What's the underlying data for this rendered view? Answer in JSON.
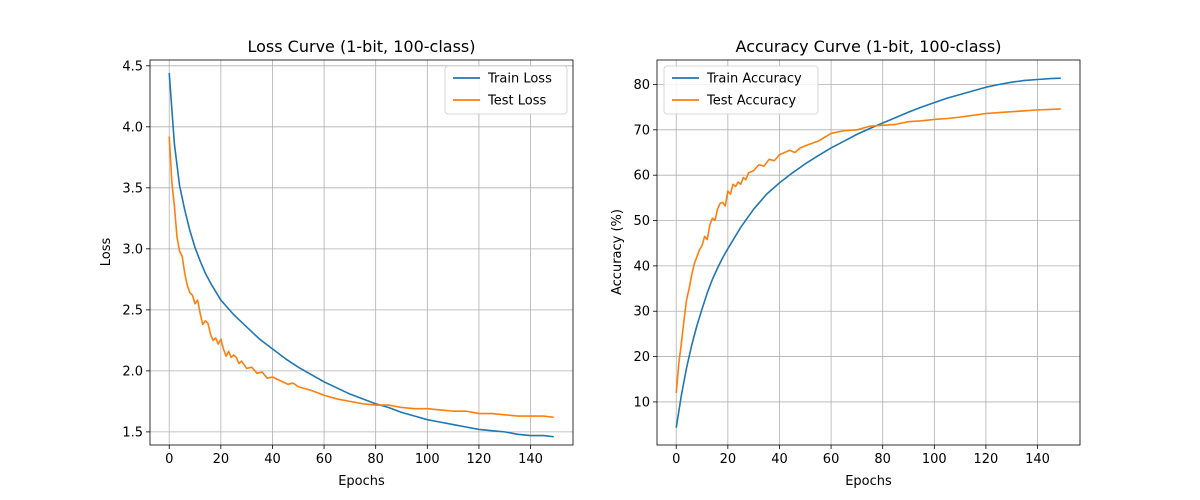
{
  "chart_data": [
    {
      "type": "line",
      "title": "Loss Curve (1-bit, 100-class)",
      "xlabel": "Epochs",
      "ylabel": "Loss",
      "xlim": [
        -7.45,
        156.45
      ],
      "ylim": [
        1.3925,
        4.5475
      ],
      "xticks": [
        0,
        20,
        40,
        60,
        80,
        100,
        120,
        140
      ],
      "yticks": [
        1.5,
        2.0,
        2.5,
        3.0,
        3.5,
        4.0,
        4.5
      ],
      "ytick_labels": [
        "1.5",
        "2.0",
        "2.5",
        "3.0",
        "3.5",
        "4.0",
        "4.5"
      ],
      "grid": true,
      "legend_position": "upper right",
      "series": [
        {
          "name": "Train Loss",
          "color": "#1f77b4",
          "x": [
            0,
            2,
            4,
            6,
            8,
            10,
            12,
            14,
            16,
            18,
            20,
            25,
            30,
            35,
            40,
            45,
            50,
            55,
            60,
            65,
            70,
            75,
            80,
            85,
            90,
            95,
            100,
            105,
            110,
            115,
            120,
            125,
            130,
            135,
            140,
            145,
            149
          ],
          "y": [
            4.44,
            3.86,
            3.52,
            3.32,
            3.15,
            3.01,
            2.9,
            2.8,
            2.72,
            2.65,
            2.58,
            2.46,
            2.36,
            2.26,
            2.18,
            2.1,
            2.03,
            1.97,
            1.91,
            1.86,
            1.81,
            1.77,
            1.73,
            1.7,
            1.66,
            1.63,
            1.6,
            1.58,
            1.56,
            1.54,
            1.52,
            1.51,
            1.5,
            1.48,
            1.47,
            1.47,
            1.46
          ]
        },
        {
          "name": "Test Loss",
          "color": "#ff7f0e",
          "x": [
            0,
            1,
            2,
            3,
            4,
            5,
            6,
            7,
            8,
            9,
            10,
            11,
            12,
            13,
            14,
            15,
            16,
            17,
            18,
            19,
            20,
            21,
            22,
            23,
            24,
            25,
            26,
            27,
            28,
            30,
            32,
            34,
            36,
            38,
            40,
            42,
            44,
            46,
            48,
            50,
            55,
            60,
            65,
            70,
            75,
            80,
            85,
            90,
            95,
            100,
            105,
            110,
            115,
            120,
            125,
            130,
            135,
            140,
            145,
            149
          ],
          "y": [
            3.92,
            3.55,
            3.35,
            3.1,
            2.98,
            2.94,
            2.8,
            2.7,
            2.64,
            2.62,
            2.55,
            2.58,
            2.47,
            2.38,
            2.41,
            2.39,
            2.3,
            2.25,
            2.27,
            2.22,
            2.26,
            2.18,
            2.12,
            2.16,
            2.11,
            2.13,
            2.11,
            2.06,
            2.08,
            2.02,
            2.03,
            1.98,
            1.99,
            1.94,
            1.95,
            1.93,
            1.91,
            1.89,
            1.9,
            1.87,
            1.84,
            1.8,
            1.77,
            1.75,
            1.73,
            1.72,
            1.72,
            1.7,
            1.69,
            1.69,
            1.68,
            1.67,
            1.67,
            1.65,
            1.65,
            1.64,
            1.63,
            1.63,
            1.63,
            1.62
          ]
        }
      ]
    },
    {
      "type": "line",
      "title": "Accuracy Curve (1-bit, 100-class)",
      "xlabel": "Epochs",
      "ylabel": "Accuracy (%)",
      "xlim": [
        -7.45,
        156.45
      ],
      "ylim": [
        0.5,
        85.4
      ],
      "xticks": [
        0,
        20,
        40,
        60,
        80,
        100,
        120,
        140
      ],
      "yticks": [
        10,
        20,
        30,
        40,
        50,
        60,
        70,
        80
      ],
      "ytick_labels": [
        "10",
        "20",
        "30",
        "40",
        "50",
        "60",
        "70",
        "80"
      ],
      "grid": true,
      "legend_position": "upper left",
      "series": [
        {
          "name": "Train Accuracy",
          "color": "#1f77b4",
          "x": [
            0,
            2,
            4,
            6,
            8,
            10,
            12,
            14,
            16,
            18,
            20,
            25,
            30,
            35,
            40,
            45,
            50,
            55,
            60,
            65,
            70,
            75,
            80,
            85,
            90,
            95,
            100,
            105,
            110,
            115,
            120,
            125,
            130,
            135,
            140,
            145,
            149
          ],
          "y": [
            4.3,
            11.5,
            17.5,
            22.5,
            26.8,
            30.5,
            34.0,
            37.0,
            39.5,
            41.8,
            43.8,
            48.5,
            52.5,
            55.8,
            58.3,
            60.5,
            62.5,
            64.3,
            66.0,
            67.5,
            69.0,
            70.3,
            71.5,
            72.7,
            73.9,
            75.0,
            76.0,
            77.0,
            77.8,
            78.6,
            79.4,
            80.0,
            80.5,
            80.9,
            81.1,
            81.3,
            81.4
          ]
        },
        {
          "name": "Test Accuracy",
          "color": "#ff7f0e",
          "x": [
            0,
            1,
            2,
            3,
            4,
            5,
            6,
            7,
            8,
            9,
            10,
            11,
            12,
            13,
            14,
            15,
            16,
            17,
            18,
            19,
            20,
            21,
            22,
            23,
            24,
            25,
            26,
            27,
            28,
            30,
            32,
            34,
            36,
            38,
            40,
            42,
            44,
            46,
            48,
            50,
            55,
            60,
            65,
            70,
            75,
            80,
            85,
            90,
            95,
            100,
            105,
            110,
            115,
            120,
            125,
            130,
            135,
            140,
            145,
            149
          ],
          "y": [
            12.0,
            18.5,
            23.0,
            28.0,
            32.5,
            35.0,
            38.0,
            40.5,
            42.0,
            43.5,
            44.5,
            46.5,
            45.8,
            49.0,
            50.5,
            50.0,
            52.5,
            53.8,
            54.0,
            53.2,
            56.5,
            55.8,
            58.0,
            57.5,
            58.5,
            58.0,
            59.5,
            59.0,
            60.5,
            61.0,
            62.3,
            62.0,
            63.5,
            63.2,
            64.5,
            65.0,
            65.5,
            65.0,
            66.0,
            66.5,
            67.5,
            69.2,
            69.8,
            70.0,
            70.8,
            71.0,
            71.2,
            71.8,
            72.0,
            72.3,
            72.5,
            72.8,
            73.2,
            73.6,
            73.8,
            74.0,
            74.2,
            74.4,
            74.5,
            74.6
          ]
        }
      ]
    }
  ]
}
